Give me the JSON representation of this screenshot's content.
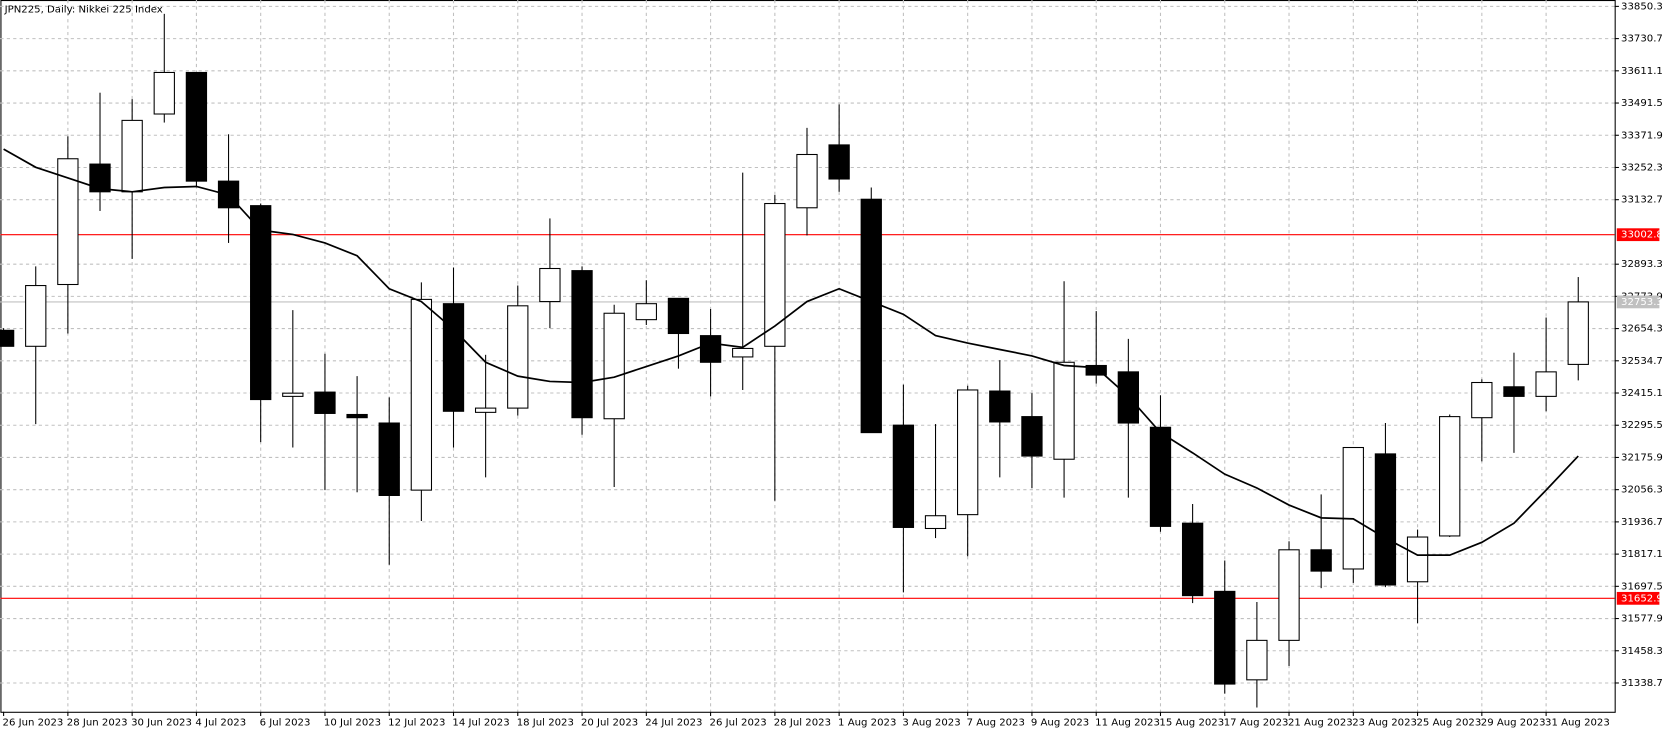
{
  "chart_data": {
    "type": "candlestick",
    "title": "JPN225, Daily:  Nikkei 225 Index",
    "categories": [
      "26 Jun 2023",
      null,
      "28 Jun 2023",
      null,
      "30 Jun 2023",
      null,
      "4 Jul 2023",
      null,
      "6 Jul 2023",
      null,
      "10 Jul 2023",
      null,
      "12 Jul 2023",
      null,
      "14 Jul 2023",
      null,
      "18 Jul 2023",
      null,
      "20 Jul 2023",
      null,
      "24 Jul 2023",
      null,
      "26 Jul 2023",
      null,
      "28 Jul 2023",
      null,
      "1 Aug 2023",
      null,
      "3 Aug 2023",
      null,
      "7 Aug 2023",
      null,
      "9 Aug 2023",
      null,
      "11 Aug 2023",
      null,
      "15 Aug 2023",
      null,
      "17 Aug 2023",
      null,
      "21 Aug 2023",
      null,
      "23 Aug 2023",
      null,
      "25 Aug 2023",
      null,
      "29 Aug 2023",
      null,
      "31 Aug 2023",
      null
    ],
    "open": [
      32647.9,
      32588.5,
      32817.9,
      33264.9,
      33162.0,
      33450.8,
      33605.0,
      33201.6,
      33110.6,
      32402.6,
      32418.5,
      32335.4,
      32303.7,
      32054.6,
      32746.7,
      32343.3,
      32359.1,
      32754.6,
      32869.4,
      32319.6,
      32687.4,
      32766.5,
      32628.1,
      32549.0,
      32588.5,
      33102.7,
      33336.1,
      33134.4,
      32295.8,
      31912.2,
      31963.6,
      32422.4,
      32327.5,
      32169.3,
      32517.3,
      32493.6,
      32287.9,
      31931.9,
      31678.8,
      31350.4,
      31496.9,
      31833.1,
      31761.9,
      32189.1,
      31714.4,
      31884.5,
      32323.5,
      32438.2,
      32402.6,
      32521.3
    ],
    "high": [
      32655.8,
      32885.2,
      33367.7,
      33529.9,
      33506.2,
      33822.6,
      33605.0,
      33375.6,
      33118.5,
      32723.0,
      32560.8,
      32477.8,
      32398.7,
      32825.8,
      32881.2,
      32556.9,
      32814.0,
      33063.2,
      32885.2,
      32742.8,
      32833.8,
      32766.5,
      32727.0,
      33233.2,
      33150.2,
      33399.4,
      33486.4,
      33177.9,
      32446.1,
      32299.8,
      32442.2,
      32537.1,
      32414.5,
      32829.8,
      32719.1,
      32616.2,
      32406.6,
      32003.1,
      31793.5,
      31639.3,
      31864.7,
      32038.7,
      32212.8,
      32303.7,
      31908.2,
      32335.4,
      32465.9,
      32564.8,
      32695.3,
      32845.6
    ],
    "low": [
      32588.5,
      32299.8,
      32636.0,
      33090.9,
      32912.9,
      33419.1,
      33177.9,
      32972.2,
      32232.6,
      32212.8,
      32054.6,
      32046.6,
      31777.7,
      31939.9,
      32212.8,
      32102.0,
      32331.4,
      32655.8,
      32260.2,
      32066.4,
      32667.6,
      32505.5,
      32402.6,
      32426.4,
      32015.0,
      32999.9,
      33162.0,
      32268.1,
      31674.9,
      31876.6,
      31809.3,
      32102.0,
      32062.5,
      32026.9,
      32450.1,
      32026.9,
      31900.3,
      31635.3,
      31299.1,
      31247.7,
      31401.9,
      31690.7,
      31710.5,
      31694.6,
      31560.2,
      31880.5,
      32161.4,
      32193.0,
      32347.3,
      32462.0
    ],
    "close": [
      32588.5,
      32814.0,
      33284.7,
      33162.0,
      33427.1,
      33605.0,
      33201.6,
      33102.7,
      32390.8,
      32414.5,
      32339.3,
      32323.5,
      32034.8,
      32762.6,
      32347.3,
      32359.1,
      32738.8,
      32877.3,
      32323.5,
      32711.2,
      32746.7,
      32636.0,
      32529.2,
      32580.6,
      33118.5,
      33300.5,
      33209.5,
      32268.1,
      31916.1,
      31959.6,
      32426.4,
      32307.7,
      32181.1,
      32529.2,
      32481.7,
      32303.7,
      31920.0,
      31663.0,
      31334.7,
      31496.9,
      31833.1,
      31754.0,
      32212.8,
      31702.5,
      31880.5,
      32327.5,
      32454.1,
      32402.6,
      32493.6,
      32753.3
    ],
    "ma": [
      33320.3,
      33253.0,
      33213.5,
      33173.9,
      33162.0,
      33177.9,
      33181.8,
      33150.2,
      33019.7,
      33003.8,
      32972.2,
      32924.7,
      32802.1,
      32754.6,
      32651.8,
      32529.2,
      32477.8,
      32458.0,
      32454.1,
      32473.8,
      32513.4,
      32552.9,
      32600.4,
      32584.6,
      32663.7,
      32754.6,
      32802.1,
      32754.6,
      32707.2,
      32628.1,
      32600.4,
      32576.7,
      32552.9,
      32517.3,
      32509.4,
      32402.6,
      32268.1,
      32193.0,
      32113.9,
      32062.5,
      31999.2,
      31951.7,
      31947.8,
      31876.6,
      31813.3,
      31813.3,
      31860.8,
      31931.9,
      32054.6,
      32181.1
    ],
    "up_color": "#ffffff",
    "down_color": "#000000",
    "ma_color": "#000000",
    "lines": [
      {
        "value": 33002.8,
        "color": "#ff0000"
      },
      {
        "value": 31652.9,
        "color": "#ff0000"
      },
      {
        "value": 32753.3,
        "color": "#c0c0c0"
      }
    ],
    "ylim": [
      31231.9,
      33874.0
    ],
    "yticks": [
      33850.3,
      33730.7,
      33611.1,
      33491.5,
      33371.9,
      33252.3,
      33132.7,
      32893.3,
      32773.9,
      32654.3,
      32534.7,
      32415.1,
      32295.5,
      32175.9,
      32056.3,
      31936.7,
      31817.1,
      31697.5,
      31577.9,
      31458.3,
      31338.7
    ],
    "grid": true
  }
}
